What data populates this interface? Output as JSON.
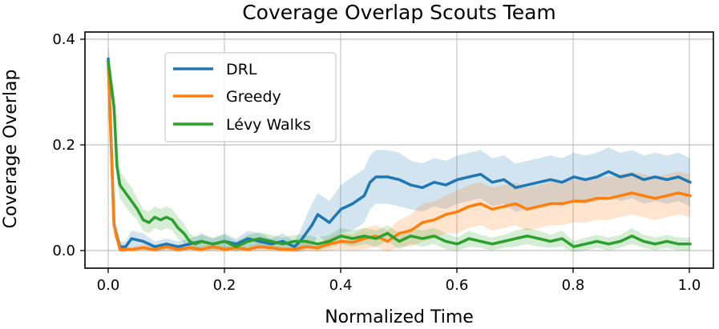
{
  "chart_data": {
    "type": "line",
    "title": "Coverage Overlap Scouts Team",
    "xlabel": "Normalized Time",
    "ylabel": "Coverage Overlap",
    "xlim": [
      -0.04,
      1.04
    ],
    "ylim": [
      -0.03,
      0.41
    ],
    "xticks": [
      0.0,
      0.2,
      0.4,
      0.6,
      0.8,
      1.0
    ],
    "xtick_labels": [
      "0.0",
      "0.2",
      "0.4",
      "0.6",
      "0.8",
      "1.0"
    ],
    "yticks": [
      0.0,
      0.2,
      0.4
    ],
    "ytick_labels": [
      "0.0",
      "0.2",
      "0.4"
    ],
    "grid": true,
    "legend_position": "upper-left",
    "series": [
      {
        "name": "DRL",
        "color": "#1f77b4",
        "x": [
          0.0,
          0.01,
          0.02,
          0.03,
          0.04,
          0.06,
          0.08,
          0.1,
          0.12,
          0.14,
          0.16,
          0.18,
          0.2,
          0.22,
          0.24,
          0.26,
          0.28,
          0.3,
          0.32,
          0.33,
          0.34,
          0.35,
          0.36,
          0.38,
          0.4,
          0.42,
          0.44,
          0.45,
          0.46,
          0.48,
          0.5,
          0.52,
          0.54,
          0.56,
          0.58,
          0.6,
          0.62,
          0.64,
          0.66,
          0.68,
          0.7,
          0.72,
          0.74,
          0.76,
          0.78,
          0.8,
          0.82,
          0.84,
          0.86,
          0.88,
          0.9,
          0.92,
          0.94,
          0.96,
          0.98,
          1.0
        ],
        "values": [
          0.36,
          0.05,
          0.01,
          0.01,
          0.025,
          0.02,
          0.01,
          0.015,
          0.01,
          0.015,
          0.02,
          0.015,
          0.02,
          0.015,
          0.025,
          0.02,
          0.015,
          0.02,
          0.01,
          0.02,
          0.035,
          0.05,
          0.07,
          0.055,
          0.08,
          0.09,
          0.105,
          0.13,
          0.14,
          0.14,
          0.135,
          0.125,
          0.12,
          0.13,
          0.125,
          0.135,
          0.14,
          0.145,
          0.13,
          0.135,
          0.12,
          0.125,
          0.13,
          0.135,
          0.13,
          0.14,
          0.135,
          0.14,
          0.15,
          0.14,
          0.145,
          0.135,
          0.14,
          0.135,
          0.14,
          0.13
        ],
        "band": [
          0.03,
          0.02,
          0.01,
          0.01,
          0.015,
          0.015,
          0.01,
          0.01,
          0.01,
          0.01,
          0.015,
          0.01,
          0.015,
          0.01,
          0.015,
          0.015,
          0.01,
          0.015,
          0.01,
          0.02,
          0.03,
          0.04,
          0.04,
          0.04,
          0.045,
          0.05,
          0.05,
          0.05,
          0.05,
          0.05,
          0.05,
          0.045,
          0.045,
          0.045,
          0.045,
          0.045,
          0.045,
          0.045,
          0.045,
          0.045,
          0.045,
          0.045,
          0.045,
          0.045,
          0.045,
          0.045,
          0.045,
          0.045,
          0.045,
          0.045,
          0.045,
          0.045,
          0.045,
          0.045,
          0.045,
          0.045
        ]
      },
      {
        "name": "Greedy",
        "color": "#ff7f0e",
        "x": [
          0.0,
          0.01,
          0.02,
          0.04,
          0.06,
          0.08,
          0.1,
          0.12,
          0.14,
          0.16,
          0.18,
          0.2,
          0.22,
          0.24,
          0.26,
          0.28,
          0.3,
          0.32,
          0.34,
          0.36,
          0.38,
          0.4,
          0.42,
          0.44,
          0.46,
          0.48,
          0.5,
          0.52,
          0.54,
          0.56,
          0.58,
          0.6,
          0.62,
          0.64,
          0.66,
          0.68,
          0.7,
          0.72,
          0.74,
          0.76,
          0.78,
          0.8,
          0.82,
          0.84,
          0.86,
          0.88,
          0.9,
          0.92,
          0.94,
          0.96,
          0.98,
          1.0
        ],
        "values": [
          0.35,
          0.05,
          0.005,
          0.005,
          0.008,
          0.005,
          0.01,
          0.005,
          0.008,
          0.005,
          0.01,
          0.005,
          0.008,
          0.005,
          0.01,
          0.008,
          0.005,
          0.005,
          0.01,
          0.008,
          0.015,
          0.02,
          0.018,
          0.025,
          0.03,
          0.02,
          0.035,
          0.04,
          0.055,
          0.06,
          0.07,
          0.075,
          0.085,
          0.09,
          0.08,
          0.085,
          0.09,
          0.08,
          0.085,
          0.09,
          0.09,
          0.095,
          0.095,
          0.1,
          0.1,
          0.105,
          0.11,
          0.105,
          0.1,
          0.105,
          0.11,
          0.105
        ],
        "band": [
          0.03,
          0.02,
          0.005,
          0.005,
          0.006,
          0.005,
          0.008,
          0.005,
          0.006,
          0.005,
          0.008,
          0.005,
          0.006,
          0.005,
          0.008,
          0.006,
          0.005,
          0.005,
          0.008,
          0.008,
          0.012,
          0.015,
          0.015,
          0.02,
          0.02,
          0.02,
          0.025,
          0.03,
          0.035,
          0.035,
          0.035,
          0.04,
          0.04,
          0.04,
          0.04,
          0.04,
          0.04,
          0.04,
          0.04,
          0.04,
          0.04,
          0.04,
          0.04,
          0.04,
          0.04,
          0.04,
          0.04,
          0.04,
          0.04,
          0.04,
          0.04,
          0.04
        ]
      },
      {
        "name": "Lévy Walks",
        "color": "#2ca02c",
        "x": [
          0.0,
          0.01,
          0.015,
          0.02,
          0.03,
          0.04,
          0.05,
          0.06,
          0.07,
          0.08,
          0.09,
          0.1,
          0.11,
          0.12,
          0.13,
          0.14,
          0.15,
          0.16,
          0.18,
          0.2,
          0.22,
          0.24,
          0.26,
          0.28,
          0.3,
          0.32,
          0.34,
          0.36,
          0.38,
          0.4,
          0.42,
          0.44,
          0.46,
          0.48,
          0.5,
          0.52,
          0.54,
          0.56,
          0.58,
          0.6,
          0.62,
          0.64,
          0.66,
          0.68,
          0.7,
          0.72,
          0.74,
          0.76,
          0.78,
          0.8,
          0.82,
          0.84,
          0.86,
          0.88,
          0.9,
          0.92,
          0.94,
          0.96,
          0.98,
          1.0
        ],
        "values": [
          0.355,
          0.27,
          0.16,
          0.125,
          0.11,
          0.095,
          0.08,
          0.06,
          0.055,
          0.065,
          0.06,
          0.065,
          0.06,
          0.045,
          0.035,
          0.02,
          0.015,
          0.02,
          0.015,
          0.02,
          0.01,
          0.02,
          0.025,
          0.02,
          0.015,
          0.02,
          0.02,
          0.015,
          0.02,
          0.03,
          0.025,
          0.03,
          0.025,
          0.035,
          0.02,
          0.03,
          0.025,
          0.03,
          0.02,
          0.015,
          0.025,
          0.02,
          0.015,
          0.02,
          0.025,
          0.03,
          0.025,
          0.02,
          0.025,
          0.01,
          0.015,
          0.02,
          0.015,
          0.02,
          0.03,
          0.02,
          0.015,
          0.02,
          0.015,
          0.015
        ],
        "band": [
          0.03,
          0.03,
          0.03,
          0.025,
          0.025,
          0.025,
          0.02,
          0.02,
          0.02,
          0.02,
          0.02,
          0.02,
          0.02,
          0.02,
          0.018,
          0.015,
          0.012,
          0.012,
          0.012,
          0.012,
          0.01,
          0.012,
          0.012,
          0.012,
          0.012,
          0.012,
          0.012,
          0.012,
          0.012,
          0.015,
          0.015,
          0.015,
          0.015,
          0.015,
          0.015,
          0.015,
          0.015,
          0.015,
          0.015,
          0.012,
          0.015,
          0.012,
          0.012,
          0.012,
          0.015,
          0.015,
          0.015,
          0.012,
          0.015,
          0.01,
          0.012,
          0.012,
          0.012,
          0.012,
          0.015,
          0.012,
          0.012,
          0.012,
          0.012,
          0.012
        ]
      }
    ]
  }
}
